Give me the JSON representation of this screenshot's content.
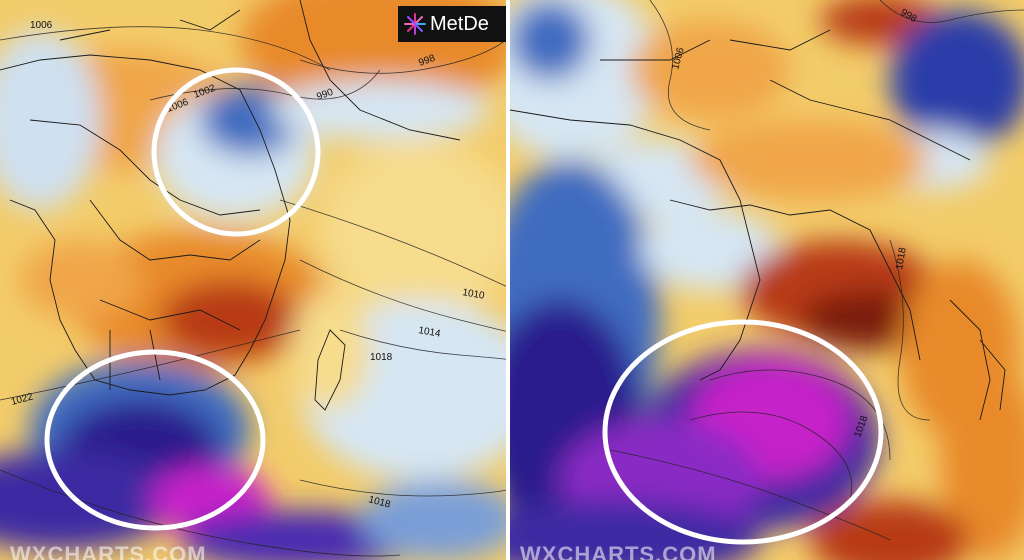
{
  "logo": {
    "text": "MetDe",
    "icon": "metdesk-starburst-logo"
  },
  "watermark_left": "WXCHARTS.COM",
  "watermark_right": "WXCHARTS.COM",
  "left_panel": {
    "isobar_labels": [
      "1006",
      "1002",
      "998",
      "990",
      "1006",
      "1010",
      "1014",
      "1018",
      "1022",
      "1018"
    ],
    "highlights": [
      {
        "name": "east-africa-cold-region",
        "shape": "circle"
      },
      {
        "name": "south-africa-cold-region",
        "shape": "circle"
      }
    ]
  },
  "right_panel": {
    "isobar_labels": [
      "1006",
      "1018",
      "1018",
      "998"
    ],
    "highlights": [
      {
        "name": "south-africa-cold-region",
        "shape": "circle"
      }
    ]
  },
  "colors": {
    "warm_yellow": "#f3cc6a",
    "warm_orange": "#e88a2c",
    "hot_red": "#b83a12",
    "very_hot": "#5e1208",
    "cool_light_blue": "#d6e6f3",
    "cool_blue": "#3f6cc0",
    "cold_dark_blue": "#2a1d8c",
    "very_cold_magenta": "#c622c9",
    "highlight_ring": "#ffffff"
  }
}
